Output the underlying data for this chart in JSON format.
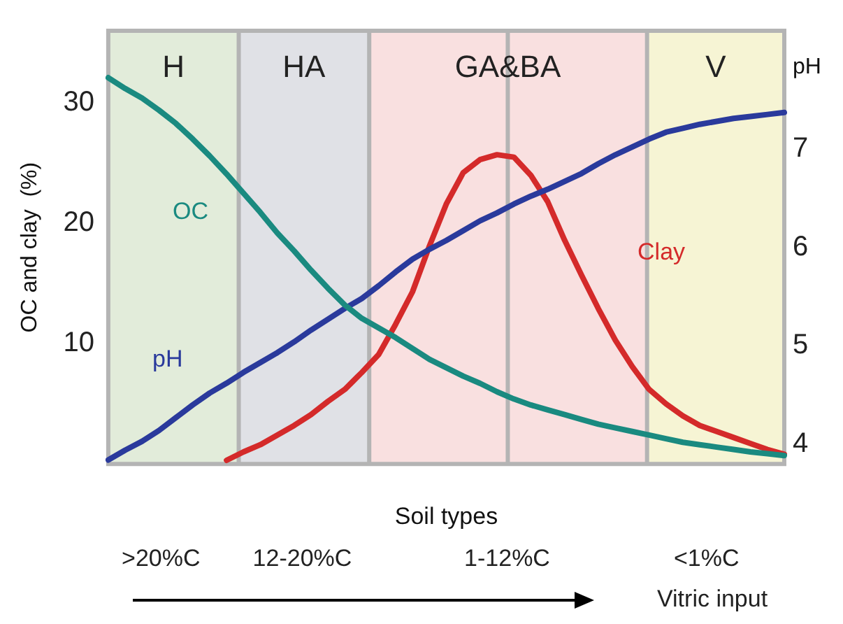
{
  "chart_data": {
    "type": "line",
    "xlabel": "Soil types",
    "ylabel": "OC and clay  (%)",
    "y2label": "pH",
    "ylim": [
      0,
      36
    ],
    "yticks": [
      10,
      20,
      30
    ],
    "y2lim": [
      3.8,
      8.2
    ],
    "y2ticks": [
      4,
      5,
      6,
      7
    ],
    "legend": false,
    "marker": "none",
    "line_style": "solid",
    "categories": [
      null,
      null,
      null,
      null,
      null,
      null,
      null,
      null,
      null,
      null,
      null,
      null,
      null,
      null,
      null,
      null,
      null,
      null,
      null,
      null,
      null,
      null,
      null,
      null,
      null,
      null,
      null,
      null,
      null,
      null,
      null,
      null,
      null,
      null,
      null,
      null,
      null,
      null,
      null,
      null,
      null
    ],
    "series": [
      {
        "name": "OC",
        "color": "#1a8a80",
        "values": [
          32.1,
          31.2,
          30.4,
          29.4,
          28.3,
          27.0,
          25.6,
          24.1,
          22.5,
          20.9,
          19.2,
          17.7,
          16.1,
          14.6,
          13.2,
          12.1,
          11.3,
          10.5,
          9.6,
          8.7,
          8.0,
          7.3,
          6.7,
          6.0,
          5.4,
          4.9,
          4.5,
          4.1,
          3.7,
          3.3,
          3.0,
          2.7,
          2.4,
          2.1,
          1.8,
          1.6,
          1.4,
          1.2,
          1.0,
          0.85,
          0.7
        ]
      },
      {
        "name": "pH",
        "color": "#2a3a9c",
        "axis": "y2",
        "values": [
          3.84,
          3.94,
          4.03,
          4.14,
          4.27,
          4.4,
          4.52,
          4.62,
          4.73,
          4.83,
          4.93,
          5.04,
          5.16,
          5.27,
          5.38,
          5.48,
          5.61,
          5.75,
          5.88,
          5.98,
          6.07,
          6.17,
          6.27,
          6.35,
          6.44,
          6.52,
          6.59,
          6.67,
          6.75,
          6.85,
          6.94,
          7.02,
          7.1,
          7.17,
          7.21,
          7.25,
          7.28,
          7.31,
          7.33,
          7.35,
          7.37
        ]
      },
      {
        "name": "Clay",
        "color": "#d42a2a",
        "values": [
          null,
          null,
          null,
          null,
          null,
          null,
          null,
          0.3,
          1.0,
          1.6,
          2.4,
          3.2,
          4.1,
          5.2,
          6.2,
          7.6,
          9.1,
          11.6,
          14.3,
          18.1,
          21.6,
          24.2,
          25.3,
          25.7,
          25.5,
          24.0,
          21.8,
          18.6,
          15.7,
          12.9,
          10.3,
          8.1,
          6.2,
          5.0,
          4.0,
          3.2,
          2.7,
          2.2,
          1.7,
          1.2,
          0.8
        ]
      }
    ],
    "annotations": [
      "H",
      "HA",
      "GA&BA",
      "V",
      ">20%C",
      "12-20%C",
      "1-12%C",
      "<1%C",
      "Vitric input"
    ]
  }
}
